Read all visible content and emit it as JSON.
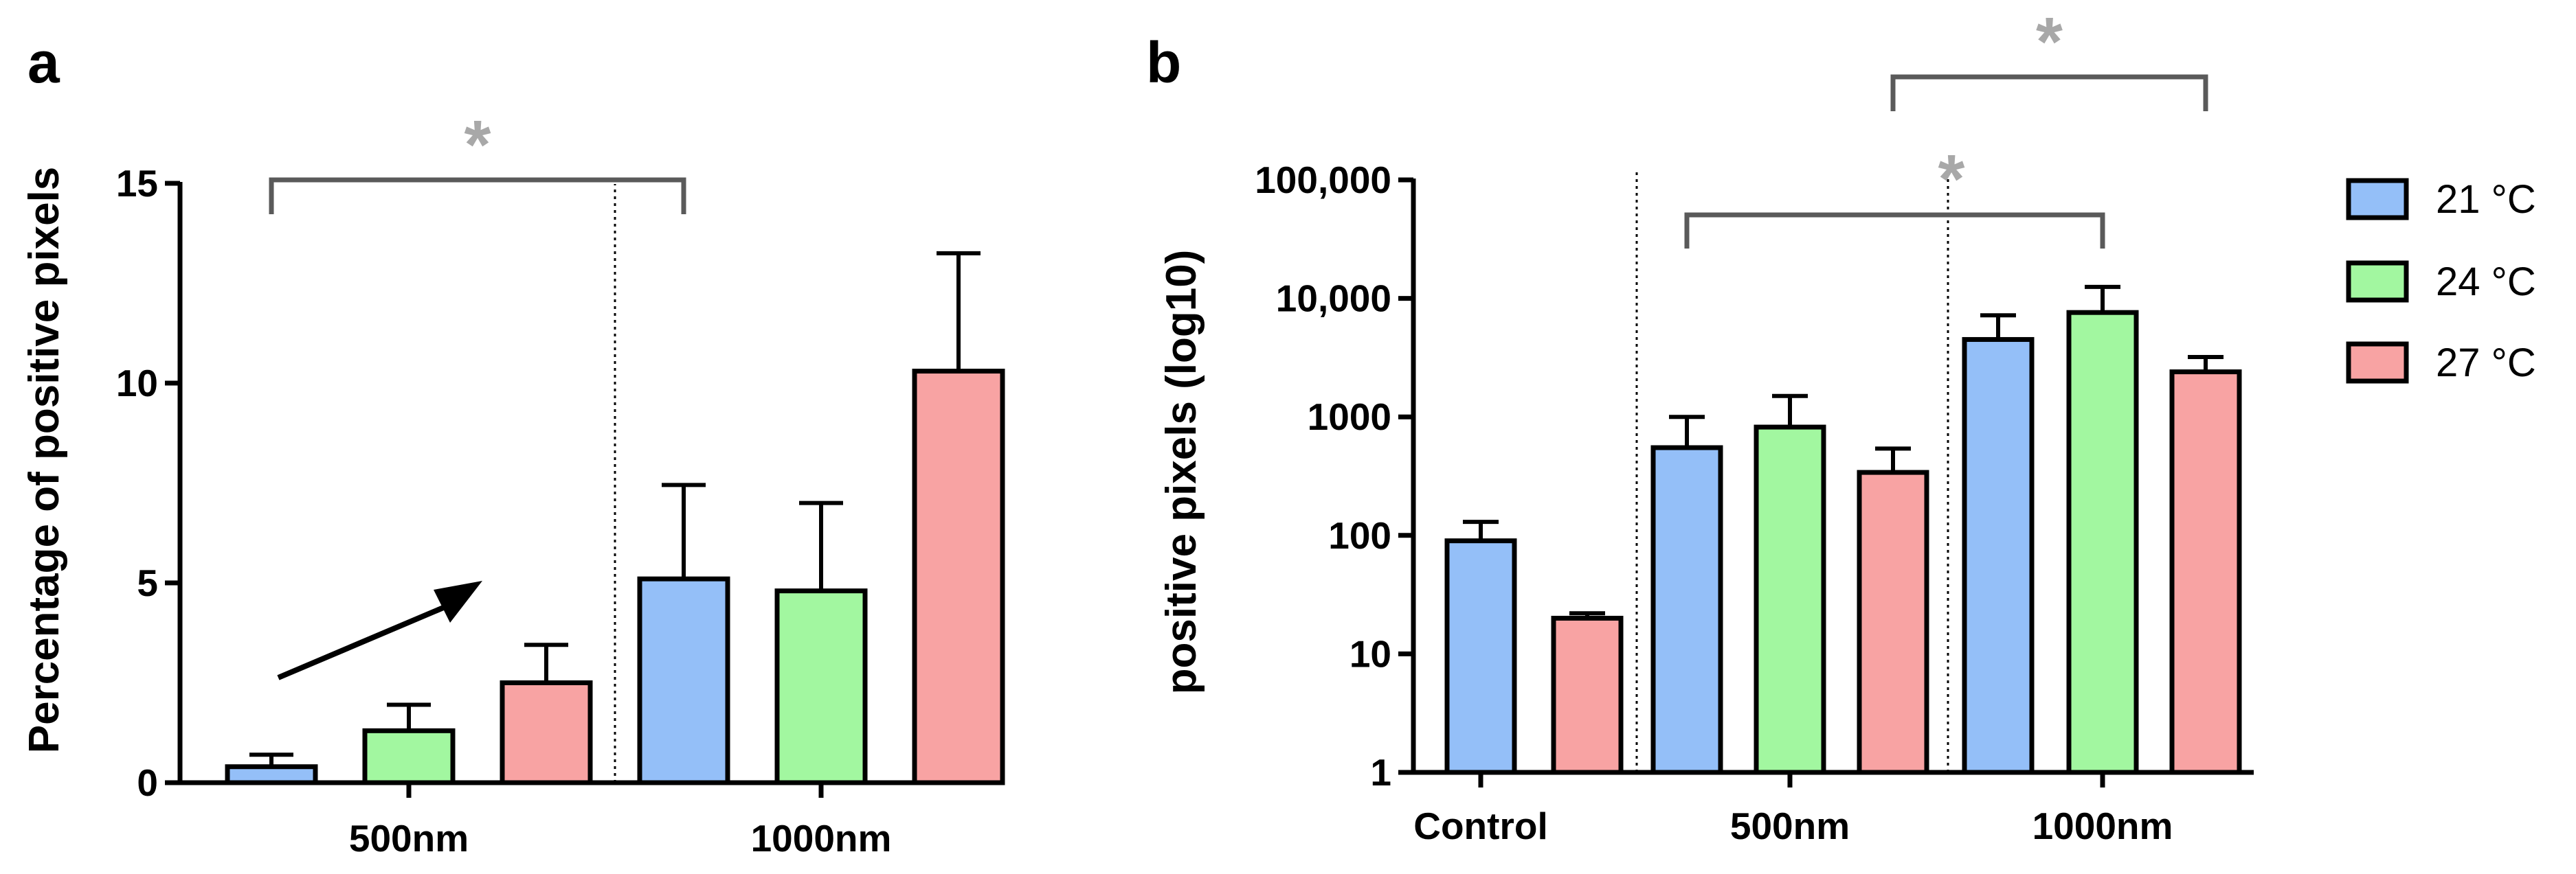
{
  "colors": {
    "t21": "#94bff8",
    "t24": "#a2f7a0",
    "t27": "#f8a3a3",
    "bracket": "#5a5a5a",
    "star": "#a8a8a8"
  },
  "legend": [
    {
      "label": "21 °C",
      "color_key": "t21"
    },
    {
      "label": "24 °C",
      "color_key": "t24"
    },
    {
      "label": "27 °C",
      "color_key": "t27"
    }
  ],
  "chart_data": [
    {
      "panel": "a",
      "type": "bar",
      "scale": "linear",
      "ylabel": "Percentage of positive pixels",
      "ylim": [
        0,
        15
      ],
      "yticks": [
        0,
        5,
        10,
        15
      ],
      "ytick_labels": [
        "0",
        "5",
        "10",
        "15"
      ],
      "groups": [
        {
          "label": "500nm",
          "bars": [
            {
              "series": "21 °C",
              "value": 0.4,
              "err": 0.3
            },
            {
              "series": "24 °C",
              "value": 1.3,
              "err": 0.65
            },
            {
              "series": "27 °C",
              "value": 2.5,
              "err": 0.95
            }
          ]
        },
        {
          "label": "1000nm",
          "bars": [
            {
              "series": "21 °C",
              "value": 5.1,
              "err": 2.35
            },
            {
              "series": "24 °C",
              "value": 4.8,
              "err": 2.2
            },
            {
              "series": "27 °C",
              "value": 10.3,
              "err": 2.95
            }
          ]
        }
      ],
      "annotations": [
        {
          "type": "bracket",
          "from": "500nm 21 °C",
          "to": "1000nm 21 °C",
          "label": "*"
        },
        {
          "type": "arrow",
          "note": "increasing trend across 500nm bars"
        }
      ]
    },
    {
      "panel": "b",
      "type": "bar",
      "scale": "log10",
      "ylabel": "positive pixels (log10)",
      "ylim": [
        1,
        100000
      ],
      "yticks": [
        1,
        10,
        100,
        1000,
        10000,
        100000
      ],
      "ytick_labels": [
        "1",
        "10",
        "100",
        "1000",
        "10,000",
        "100,000"
      ],
      "groups": [
        {
          "label": "Control",
          "bars": [
            {
              "series": "21 °C",
              "value": 90,
              "err_top": 130
            },
            {
              "series": "27 °C",
              "value": 20,
              "err_top": 22
            }
          ]
        },
        {
          "label": "500nm",
          "bars": [
            {
              "series": "21 °C",
              "value": 550,
              "err_top": 1000
            },
            {
              "series": "24 °C",
              "value": 820,
              "err_top": 1500
            },
            {
              "series": "27 °C",
              "value": 340,
              "err_top": 540
            }
          ]
        },
        {
          "label": "1000nm",
          "bars": [
            {
              "series": "21 °C",
              "value": 4500,
              "err_top": 7200
            },
            {
              "series": "24 °C",
              "value": 7600,
              "err_top": 12500
            },
            {
              "series": "27 °C",
              "value": 2400,
              "err_top": 3200
            }
          ]
        }
      ],
      "annotations": [
        {
          "type": "bracket",
          "from": "500nm 21 °C",
          "to": "1000nm 24 °C",
          "label": "*"
        },
        {
          "type": "bracket",
          "from": "500nm 27 °C",
          "to": "1000nm 27 °C",
          "label": "*"
        }
      ]
    }
  ]
}
